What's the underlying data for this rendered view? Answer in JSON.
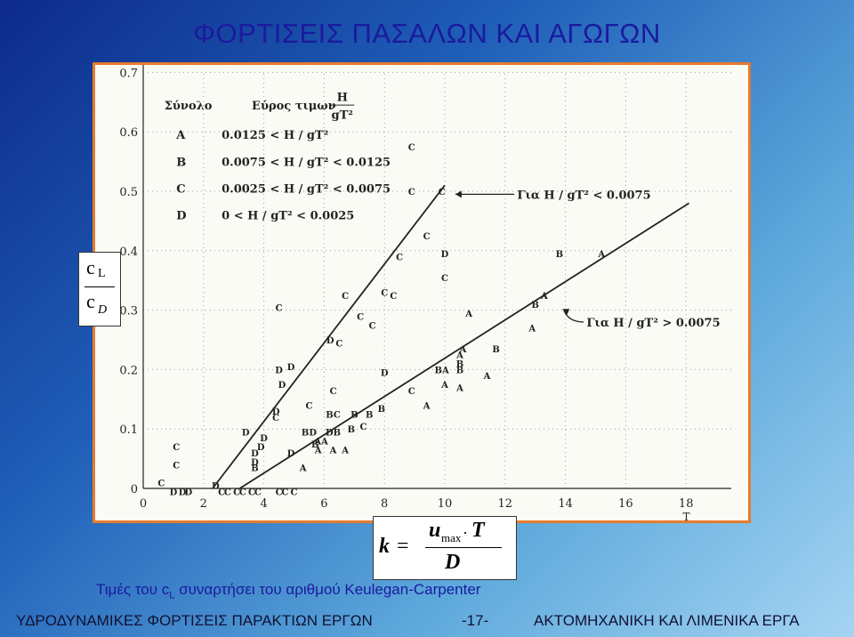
{
  "slide": {
    "title": "ΦΟΡΤΙΣΕΙΣ ΠΑΣΑΛΩΝ ΚΑΙ ΑΓΩΓΩΝ",
    "caption_pre": "Τιμές του c",
    "caption_sub": "L",
    "caption_post": " συναρτήσει του αριθμού Keulegan-Carpenter",
    "footer_left": "ΥΔΡΟΔΥΝΑΜΙΚΕΣ ΦΟΡΤΙΣΕΙΣ ΠΑΡΑΚΤΙΩΝ ΕΡΓΩΝ",
    "footer_page": "-17-",
    "footer_right": "ΑΚΤΟΜΗΧΑΝΙΚΗ ΚΑΙ ΛΙΜΕΝΙΚΑ ΕΡΓΑ"
  },
  "ratio_box": {
    "num_c": "c",
    "num_sub": "L",
    "den_c": "c",
    "den_sub": "D"
  },
  "formula": {
    "lhs": "k",
    "eq": "=",
    "u": "u",
    "u_sub": "max",
    "dot": "·",
    "T": "T",
    "D": "D"
  },
  "colors": {
    "title": "#1b1a9e",
    "frame": "#e87b2c",
    "ink": "#222222"
  },
  "chart_data": {
    "type": "scatter",
    "x_ticks": [
      "0",
      "2",
      "4",
      "6",
      "8",
      "10",
      "12",
      "14",
      "16",
      "18"
    ],
    "y_ticks": [
      "0",
      "0.1",
      "0.2",
      "0.3",
      "0.4",
      "0.5",
      "0.6",
      "0.7"
    ],
    "xlim": [
      0,
      20
    ],
    "ylim": [
      0,
      0.7
    ],
    "x_axis_letter": "T",
    "grid": "dotted",
    "legend": {
      "header_left": "Σύνολο",
      "header_right": "Εύρος τιμων",
      "header_frac_num": "H",
      "header_frac_den": "gT²",
      "entries": [
        {
          "symbol": "A",
          "text": "0.0125 < H / gT² "
        },
        {
          "symbol": "B",
          "text": "0.0075 < H / gT² < 0.0125"
        },
        {
          "symbol": "C",
          "text": "0.0025 < H / gT² < 0.0075"
        },
        {
          "symbol": "D",
          "text": "0 < H / gT² < 0.0025"
        }
      ]
    },
    "trend_lines": [
      {
        "label": "Για H / gT² < 0.0075",
        "from": [
          2.3,
          0.0
        ],
        "to": [
          10.0,
          0.51
        ]
      },
      {
        "label": "Για H / gT² > 0.0075",
        "from": [
          3.2,
          0.0
        ],
        "to": [
          18.1,
          0.48
        ]
      }
    ],
    "points": [
      {
        "s": "C",
        "x": 0.6,
        "y": 0.01
      },
      {
        "s": "D",
        "x": 1.0,
        "y": -0.005
      },
      {
        "s": "D",
        "x": 1.3,
        "y": -0.005
      },
      {
        "s": "D",
        "x": 1.5,
        "y": -0.005
      },
      {
        "s": "C",
        "x": 1.1,
        "y": 0.04
      },
      {
        "s": "C",
        "x": 1.1,
        "y": 0.07
      },
      {
        "s": "D",
        "x": 2.4,
        "y": 0.005
      },
      {
        "s": "C",
        "x": 2.6,
        "y": -0.005
      },
      {
        "s": "C",
        "x": 2.8,
        "y": -0.005
      },
      {
        "s": "C",
        "x": 3.1,
        "y": -0.005
      },
      {
        "s": "C",
        "x": 3.3,
        "y": -0.005
      },
      {
        "s": "C",
        "x": 3.6,
        "y": -0.005
      },
      {
        "s": "C",
        "x": 3.8,
        "y": -0.005
      },
      {
        "s": "C",
        "x": 4.5,
        "y": -0.005
      },
      {
        "s": "C",
        "x": 4.7,
        "y": -0.005
      },
      {
        "s": "C",
        "x": 5.0,
        "y": -0.005
      },
      {
        "s": "D",
        "x": 3.7,
        "y": 0.045
      },
      {
        "s": "D",
        "x": 3.7,
        "y": 0.06
      },
      {
        "s": "B",
        "x": 3.7,
        "y": 0.035
      },
      {
        "s": "D",
        "x": 3.9,
        "y": 0.07
      },
      {
        "s": "D",
        "x": 4.0,
        "y": 0.085
      },
      {
        "s": "D",
        "x": 3.4,
        "y": 0.095
      },
      {
        "s": "D",
        "x": 4.9,
        "y": 0.06
      },
      {
        "s": "A",
        "x": 5.3,
        "y": 0.035
      },
      {
        "s": "B",
        "x": 5.7,
        "y": 0.075
      },
      {
        "s": "BD",
        "x": 5.5,
        "y": 0.095
      },
      {
        "s": "DB",
        "x": 6.3,
        "y": 0.095
      },
      {
        "s": "AA",
        "x": 5.9,
        "y": 0.08
      },
      {
        "s": "A",
        "x": 5.8,
        "y": 0.065
      },
      {
        "s": "A",
        "x": 6.3,
        "y": 0.065
      },
      {
        "s": "A",
        "x": 6.7,
        "y": 0.065
      },
      {
        "s": "B",
        "x": 6.9,
        "y": 0.1
      },
      {
        "s": "C",
        "x": 7.3,
        "y": 0.105
      },
      {
        "s": "D",
        "x": 4.4,
        "y": 0.13
      },
      {
        "s": "C",
        "x": 4.4,
        "y": 0.12
      },
      {
        "s": "D",
        "x": 4.5,
        "y": 0.2
      },
      {
        "s": "D",
        "x": 4.9,
        "y": 0.205
      },
      {
        "s": "D",
        "x": 4.6,
        "y": 0.175
      },
      {
        "s": "C",
        "x": 5.5,
        "y": 0.14
      },
      {
        "s": "BC",
        "x": 6.3,
        "y": 0.125
      },
      {
        "s": "B",
        "x": 7.0,
        "y": 0.125
      },
      {
        "s": "B",
        "x": 7.5,
        "y": 0.125
      },
      {
        "s": "B",
        "x": 7.9,
        "y": 0.135
      },
      {
        "s": "C",
        "x": 6.3,
        "y": 0.165
      },
      {
        "s": "D",
        "x": 6.2,
        "y": 0.25
      },
      {
        "s": "D",
        "x": 8.0,
        "y": 0.195
      },
      {
        "s": "C",
        "x": 6.5,
        "y": 0.245
      },
      {
        "s": "C",
        "x": 7.2,
        "y": 0.29
      },
      {
        "s": "C",
        "x": 7.6,
        "y": 0.275
      },
      {
        "s": "C",
        "x": 4.5,
        "y": 0.305
      },
      {
        "s": "C",
        "x": 6.7,
        "y": 0.325
      },
      {
        "s": "C",
        "x": 8.0,
        "y": 0.33
      },
      {
        "s": "C",
        "x": 8.3,
        "y": 0.325
      },
      {
        "s": "C",
        "x": 8.5,
        "y": 0.39
      },
      {
        "s": "C",
        "x": 9.4,
        "y": 0.425
      },
      {
        "s": "C",
        "x": 8.9,
        "y": 0.5
      },
      {
        "s": "C",
        "x": 9.9,
        "y": 0.5
      },
      {
        "s": "C",
        "x": 8.9,
        "y": 0.575
      },
      {
        "s": "A",
        "x": 9.4,
        "y": 0.14
      },
      {
        "s": "C",
        "x": 8.9,
        "y": 0.165
      },
      {
        "s": "A",
        "x": 10.0,
        "y": 0.175
      },
      {
        "s": "A",
        "x": 10.5,
        "y": 0.17
      },
      {
        "s": "BA",
        "x": 9.9,
        "y": 0.2
      },
      {
        "s": "B",
        "x": 10.5,
        "y": 0.21
      },
      {
        "s": "B",
        "x": 10.5,
        "y": 0.2
      },
      {
        "s": "A",
        "x": 10.5,
        "y": 0.225
      },
      {
        "s": "A",
        "x": 10.6,
        "y": 0.235
      },
      {
        "s": "A",
        "x": 11.4,
        "y": 0.19
      },
      {
        "s": "B",
        "x": 11.7,
        "y": 0.235
      },
      {
        "s": "A",
        "x": 10.8,
        "y": 0.295
      },
      {
        "s": "C",
        "x": 10.0,
        "y": 0.355
      },
      {
        "s": "D",
        "x": 10.0,
        "y": 0.395
      },
      {
        "s": "B",
        "x": 13.0,
        "y": 0.31
      },
      {
        "s": "A",
        "x": 13.3,
        "y": 0.325
      },
      {
        "s": "A",
        "x": 12.9,
        "y": 0.27
      },
      {
        "s": "B",
        "x": 13.8,
        "y": 0.395
      },
      {
        "s": "A",
        "x": 15.2,
        "y": 0.395
      }
    ]
  }
}
